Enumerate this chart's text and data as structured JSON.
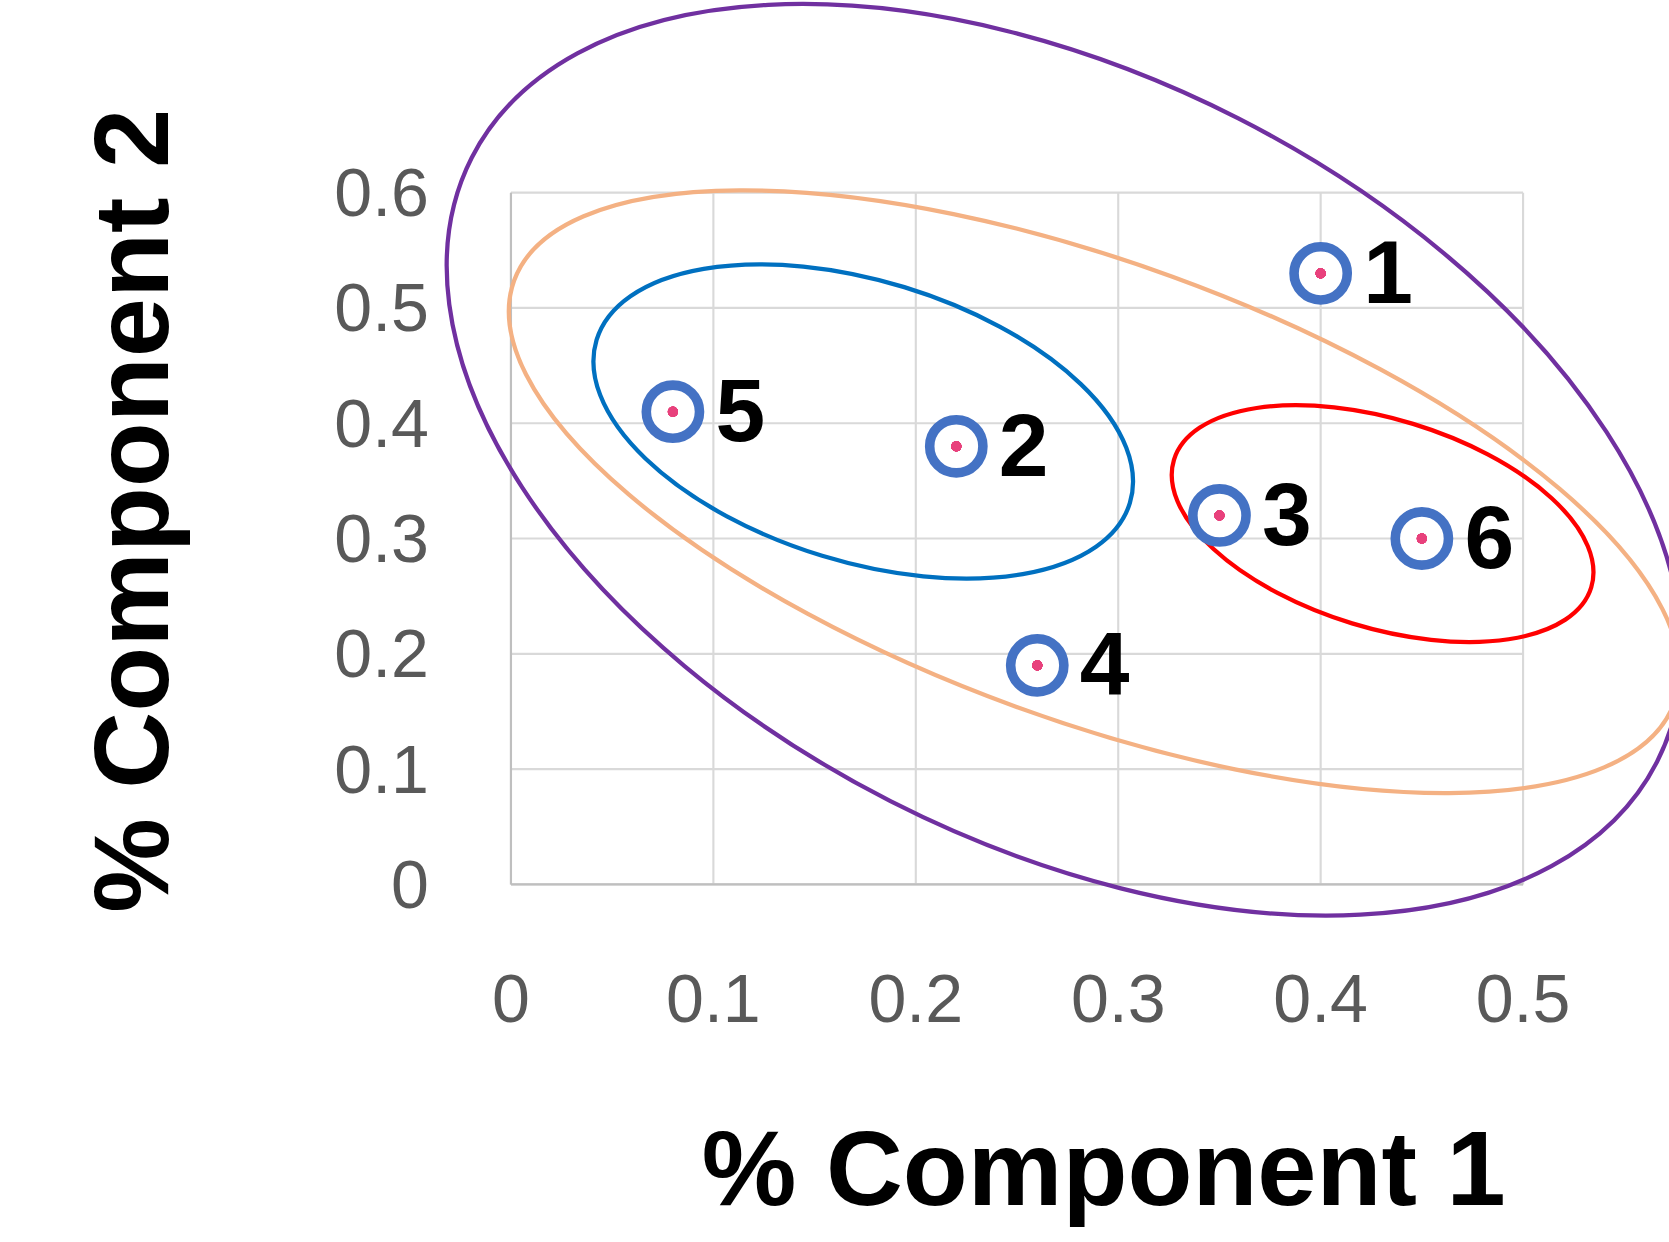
{
  "chart_data": {
    "type": "scatter",
    "xlabel": "% Component 1",
    "ylabel": "% Component 2",
    "x": [
      0.4,
      0.22,
      0.35,
      0.26,
      0.08,
      0.45
    ],
    "series": [
      {
        "color": "#4472c4",
        "values": [
          0.53,
          0.38,
          0.32,
          0.19,
          0.41,
          0.3
        ]
      }
    ],
    "value_labels": [
      "1",
      "2",
      "3",
      "4",
      "5",
      "6"
    ],
    "xlim": [
      0,
      0.5
    ],
    "xticks": [
      0,
      0.1,
      0.2,
      0.3,
      0.4,
      0.5
    ],
    "ylim": [
      0,
      0.6
    ],
    "yticks": [
      0,
      0.1,
      0.2,
      0.3,
      0.4,
      0.5,
      0.6
    ],
    "grid": true,
    "marker": "circle"
  }
}
